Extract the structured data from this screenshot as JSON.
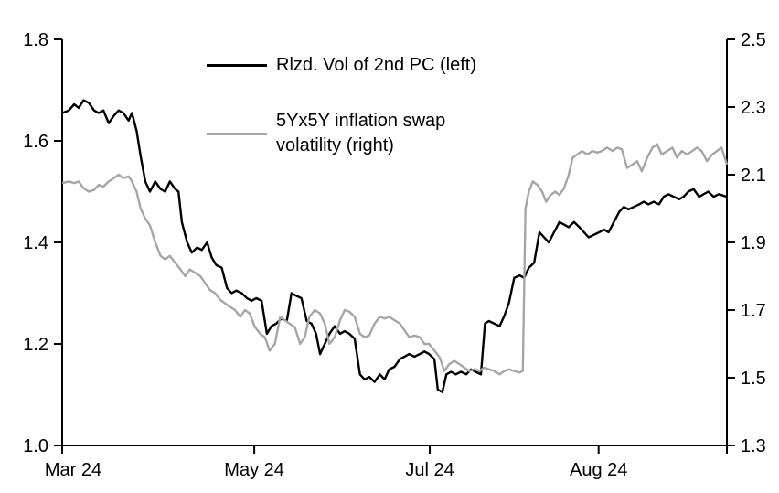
{
  "legend": {
    "series1_label": "Rlzd. Vol of 2nd PC (left)",
    "series2_label_line1": "5Yx5Y inflation swap",
    "series2_label_line2": "volatility (right)"
  },
  "colors": {
    "series1": "#000000",
    "series2": "#a6a6a6",
    "axis": "#000000",
    "background": "#ffffff"
  },
  "chart_data": {
    "type": "line",
    "title": "",
    "grid": false,
    "legend_position": "top-inside",
    "left_axis": {
      "range": [
        1.0,
        1.8
      ],
      "tick_values": [
        1.0,
        1.2,
        1.4,
        1.6,
        1.8
      ],
      "tick_labels": [
        "1.0",
        "1.2",
        "1.4",
        "1.6",
        "1.8"
      ]
    },
    "right_axis": {
      "range": [
        1.3,
        2.5
      ],
      "tick_values": [
        1.3,
        1.5,
        1.7,
        1.9,
        2.1,
        2.3,
        2.5
      ],
      "tick_labels": [
        "1.3",
        "1.5",
        "1.7",
        "1.9",
        "2.1",
        "2.3",
        "2.5"
      ]
    },
    "x_axis": {
      "tick_positions": [
        0.0,
        0.289,
        0.553,
        0.807,
        1.0
      ],
      "tick_labels": [
        "Mar 24",
        "May 24",
        "Jul 24",
        "Aug 24",
        ""
      ]
    },
    "series": [
      {
        "name": "Rlzd. Vol of 2nd PC (left)",
        "axis": "left",
        "color": "#000000",
        "points": [
          [
            0.0,
            1.655
          ],
          [
            0.01,
            1.66
          ],
          [
            0.018,
            1.672
          ],
          [
            0.025,
            1.665
          ],
          [
            0.032,
            1.68
          ],
          [
            0.04,
            1.675
          ],
          [
            0.048,
            1.66
          ],
          [
            0.055,
            1.655
          ],
          [
            0.062,
            1.66
          ],
          [
            0.07,
            1.635
          ],
          [
            0.078,
            1.65
          ],
          [
            0.085,
            1.66
          ],
          [
            0.092,
            1.655
          ],
          [
            0.1,
            1.64
          ],
          [
            0.105,
            1.655
          ],
          [
            0.112,
            1.62
          ],
          [
            0.118,
            1.57
          ],
          [
            0.125,
            1.52
          ],
          [
            0.132,
            1.5
          ],
          [
            0.14,
            1.52
          ],
          [
            0.148,
            1.505
          ],
          [
            0.155,
            1.5
          ],
          [
            0.162,
            1.52
          ],
          [
            0.17,
            1.505
          ],
          [
            0.175,
            1.5
          ],
          [
            0.18,
            1.44
          ],
          [
            0.188,
            1.4
          ],
          [
            0.195,
            1.38
          ],
          [
            0.203,
            1.39
          ],
          [
            0.21,
            1.385
          ],
          [
            0.218,
            1.4
          ],
          [
            0.225,
            1.37
          ],
          [
            0.232,
            1.355
          ],
          [
            0.24,
            1.35
          ],
          [
            0.248,
            1.31
          ],
          [
            0.255,
            1.3
          ],
          [
            0.262,
            1.305
          ],
          [
            0.27,
            1.3
          ],
          [
            0.278,
            1.29
          ],
          [
            0.285,
            1.285
          ],
          [
            0.292,
            1.29
          ],
          [
            0.3,
            1.285
          ],
          [
            0.308,
            1.22
          ],
          [
            0.315,
            1.235
          ],
          [
            0.322,
            1.24
          ],
          [
            0.33,
            1.25
          ],
          [
            0.338,
            1.245
          ],
          [
            0.345,
            1.3
          ],
          [
            0.352,
            1.295
          ],
          [
            0.36,
            1.29
          ],
          [
            0.368,
            1.245
          ],
          [
            0.375,
            1.24
          ],
          [
            0.382,
            1.22
          ],
          [
            0.388,
            1.18
          ],
          [
            0.395,
            1.2
          ],
          [
            0.402,
            1.22
          ],
          [
            0.41,
            1.235
          ],
          [
            0.418,
            1.22
          ],
          [
            0.425,
            1.225
          ],
          [
            0.432,
            1.22
          ],
          [
            0.44,
            1.21
          ],
          [
            0.448,
            1.14
          ],
          [
            0.455,
            1.13
          ],
          [
            0.462,
            1.135
          ],
          [
            0.47,
            1.125
          ],
          [
            0.478,
            1.14
          ],
          [
            0.485,
            1.13
          ],
          [
            0.492,
            1.15
          ],
          [
            0.5,
            1.155
          ],
          [
            0.508,
            1.17
          ],
          [
            0.515,
            1.175
          ],
          [
            0.522,
            1.18
          ],
          [
            0.53,
            1.175
          ],
          [
            0.538,
            1.18
          ],
          [
            0.545,
            1.185
          ],
          [
            0.552,
            1.18
          ],
          [
            0.56,
            1.17
          ],
          [
            0.565,
            1.11
          ],
          [
            0.572,
            1.105
          ],
          [
            0.578,
            1.14
          ],
          [
            0.585,
            1.145
          ],
          [
            0.592,
            1.14
          ],
          [
            0.6,
            1.145
          ],
          [
            0.608,
            1.14
          ],
          [
            0.615,
            1.15
          ],
          [
            0.622,
            1.145
          ],
          [
            0.63,
            1.14
          ],
          [
            0.636,
            1.24
          ],
          [
            0.642,
            1.245
          ],
          [
            0.65,
            1.24
          ],
          [
            0.658,
            1.235
          ],
          [
            0.665,
            1.255
          ],
          [
            0.672,
            1.28
          ],
          [
            0.68,
            1.33
          ],
          [
            0.688,
            1.335
          ],
          [
            0.695,
            1.33
          ],
          [
            0.702,
            1.35
          ],
          [
            0.71,
            1.36
          ],
          [
            0.718,
            1.42
          ],
          [
            0.725,
            1.41
          ],
          [
            0.732,
            1.4
          ],
          [
            0.74,
            1.42
          ],
          [
            0.748,
            1.44
          ],
          [
            0.755,
            1.435
          ],
          [
            0.762,
            1.43
          ],
          [
            0.77,
            1.44
          ],
          [
            0.778,
            1.43
          ],
          [
            0.785,
            1.42
          ],
          [
            0.792,
            1.41
          ],
          [
            0.8,
            1.415
          ],
          [
            0.808,
            1.42
          ],
          [
            0.815,
            1.425
          ],
          [
            0.822,
            1.42
          ],
          [
            0.83,
            1.44
          ],
          [
            0.838,
            1.46
          ],
          [
            0.845,
            1.47
          ],
          [
            0.852,
            1.465
          ],
          [
            0.86,
            1.47
          ],
          [
            0.868,
            1.475
          ],
          [
            0.875,
            1.48
          ],
          [
            0.882,
            1.475
          ],
          [
            0.89,
            1.48
          ],
          [
            0.898,
            1.475
          ],
          [
            0.905,
            1.49
          ],
          [
            0.912,
            1.495
          ],
          [
            0.92,
            1.49
          ],
          [
            0.928,
            1.485
          ],
          [
            0.935,
            1.49
          ],
          [
            0.942,
            1.5
          ],
          [
            0.95,
            1.505
          ],
          [
            0.958,
            1.49
          ],
          [
            0.965,
            1.495
          ],
          [
            0.972,
            1.5
          ],
          [
            0.98,
            1.49
          ],
          [
            0.988,
            1.495
          ],
          [
            1.0,
            1.49
          ]
        ]
      },
      {
        "name": "5Yx5Y inflation swap volatility (right)",
        "axis": "right",
        "color": "#a6a6a6",
        "points": [
          [
            0.0,
            2.075
          ],
          [
            0.01,
            2.08
          ],
          [
            0.018,
            2.075
          ],
          [
            0.025,
            2.08
          ],
          [
            0.032,
            2.06
          ],
          [
            0.04,
            2.05
          ],
          [
            0.048,
            2.055
          ],
          [
            0.055,
            2.07
          ],
          [
            0.062,
            2.065
          ],
          [
            0.07,
            2.08
          ],
          [
            0.078,
            2.09
          ],
          [
            0.085,
            2.1
          ],
          [
            0.092,
            2.09
          ],
          [
            0.1,
            2.095
          ],
          [
            0.105,
            2.08
          ],
          [
            0.112,
            2.05
          ],
          [
            0.118,
            2.0
          ],
          [
            0.125,
            1.97
          ],
          [
            0.132,
            1.95
          ],
          [
            0.14,
            1.9
          ],
          [
            0.148,
            1.86
          ],
          [
            0.155,
            1.85
          ],
          [
            0.162,
            1.86
          ],
          [
            0.17,
            1.84
          ],
          [
            0.178,
            1.82
          ],
          [
            0.185,
            1.8
          ],
          [
            0.192,
            1.82
          ],
          [
            0.2,
            1.81
          ],
          [
            0.208,
            1.8
          ],
          [
            0.215,
            1.78
          ],
          [
            0.222,
            1.76
          ],
          [
            0.23,
            1.75
          ],
          [
            0.238,
            1.73
          ],
          [
            0.245,
            1.72
          ],
          [
            0.252,
            1.71
          ],
          [
            0.26,
            1.7
          ],
          [
            0.268,
            1.68
          ],
          [
            0.275,
            1.7
          ],
          [
            0.282,
            1.69
          ],
          [
            0.29,
            1.65
          ],
          [
            0.298,
            1.63
          ],
          [
            0.305,
            1.62
          ],
          [
            0.312,
            1.58
          ],
          [
            0.32,
            1.6
          ],
          [
            0.328,
            1.68
          ],
          [
            0.335,
            1.67
          ],
          [
            0.342,
            1.66
          ],
          [
            0.35,
            1.65
          ],
          [
            0.358,
            1.6
          ],
          [
            0.365,
            1.62
          ],
          [
            0.372,
            1.68
          ],
          [
            0.38,
            1.7
          ],
          [
            0.388,
            1.69
          ],
          [
            0.395,
            1.66
          ],
          [
            0.402,
            1.6
          ],
          [
            0.41,
            1.62
          ],
          [
            0.418,
            1.67
          ],
          [
            0.425,
            1.7
          ],
          [
            0.432,
            1.695
          ],
          [
            0.44,
            1.68
          ],
          [
            0.448,
            1.63
          ],
          [
            0.455,
            1.62
          ],
          [
            0.462,
            1.625
          ],
          [
            0.47,
            1.66
          ],
          [
            0.478,
            1.68
          ],
          [
            0.485,
            1.675
          ],
          [
            0.492,
            1.68
          ],
          [
            0.5,
            1.67
          ],
          [
            0.508,
            1.66
          ],
          [
            0.515,
            1.64
          ],
          [
            0.522,
            1.62
          ],
          [
            0.53,
            1.625
          ],
          [
            0.538,
            1.62
          ],
          [
            0.545,
            1.6
          ],
          [
            0.552,
            1.6
          ],
          [
            0.56,
            1.58
          ],
          [
            0.568,
            1.56
          ],
          [
            0.575,
            1.52
          ],
          [
            0.582,
            1.54
          ],
          [
            0.59,
            1.55
          ],
          [
            0.598,
            1.54
          ],
          [
            0.605,
            1.53
          ],
          [
            0.612,
            1.52
          ],
          [
            0.62,
            1.525
          ],
          [
            0.628,
            1.52
          ],
          [
            0.635,
            1.53
          ],
          [
            0.642,
            1.525
          ],
          [
            0.65,
            1.52
          ],
          [
            0.658,
            1.51
          ],
          [
            0.665,
            1.52
          ],
          [
            0.672,
            1.525
          ],
          [
            0.68,
            1.52
          ],
          [
            0.688,
            1.515
          ],
          [
            0.693,
            1.52
          ],
          [
            0.697,
            2.0
          ],
          [
            0.702,
            2.05
          ],
          [
            0.708,
            2.08
          ],
          [
            0.715,
            2.07
          ],
          [
            0.722,
            2.05
          ],
          [
            0.728,
            2.02
          ],
          [
            0.735,
            2.04
          ],
          [
            0.742,
            2.05
          ],
          [
            0.748,
            2.04
          ],
          [
            0.755,
            2.06
          ],
          [
            0.762,
            2.1
          ],
          [
            0.768,
            2.15
          ],
          [
            0.775,
            2.16
          ],
          [
            0.782,
            2.17
          ],
          [
            0.79,
            2.16
          ],
          [
            0.798,
            2.17
          ],
          [
            0.805,
            2.165
          ],
          [
            0.812,
            2.17
          ],
          [
            0.82,
            2.18
          ],
          [
            0.828,
            2.17
          ],
          [
            0.835,
            2.18
          ],
          [
            0.842,
            2.175
          ],
          [
            0.85,
            2.12
          ],
          [
            0.858,
            2.13
          ],
          [
            0.865,
            2.14
          ],
          [
            0.872,
            2.11
          ],
          [
            0.88,
            2.15
          ],
          [
            0.888,
            2.18
          ],
          [
            0.895,
            2.19
          ],
          [
            0.902,
            2.16
          ],
          [
            0.91,
            2.17
          ],
          [
            0.918,
            2.18
          ],
          [
            0.925,
            2.15
          ],
          [
            0.932,
            2.17
          ],
          [
            0.94,
            2.16
          ],
          [
            0.948,
            2.17
          ],
          [
            0.955,
            2.18
          ],
          [
            0.962,
            2.17
          ],
          [
            0.97,
            2.14
          ],
          [
            0.978,
            2.16
          ],
          [
            0.985,
            2.17
          ],
          [
            0.992,
            2.18
          ],
          [
            1.0,
            2.13
          ]
        ]
      }
    ]
  }
}
